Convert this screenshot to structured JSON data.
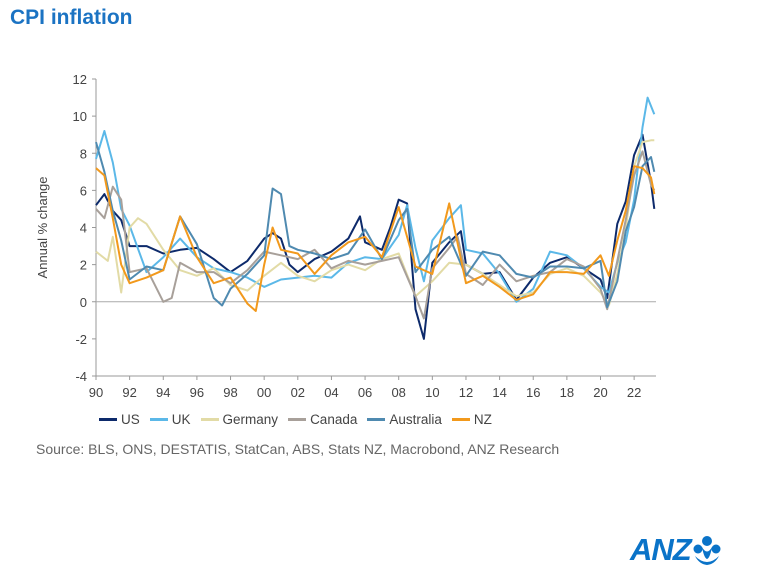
{
  "title": "CPI inflation",
  "source": "Source: BLS, ONS, DESTATIS, StatCan, ABS, Stats NZ, Macrobond, ANZ Research",
  "logo_text": "ANZ",
  "chart_data": {
    "type": "line",
    "title": "CPI inflation",
    "xlabel": "",
    "ylabel": "Annual % change",
    "xlim": [
      1990,
      2023.3
    ],
    "ylim": [
      -4,
      12
    ],
    "yticks": [
      -4,
      -2,
      0,
      2,
      4,
      6,
      8,
      10,
      12
    ],
    "xtick_labels": [
      "90",
      "92",
      "94",
      "96",
      "98",
      "00",
      "02",
      "04",
      "06",
      "08",
      "10",
      "12",
      "14",
      "16",
      "18",
      "20",
      "22"
    ],
    "grid": false,
    "legend_position": "bottom",
    "series": [
      {
        "name": "US",
        "color": "#0d2a6b",
        "x": [
          1990,
          1990.5,
          1991,
          1991.5,
          1992,
          1993,
          1994,
          1995,
          1996,
          1997,
          1998,
          1999,
          2000,
          2000.5,
          2001,
          2001.5,
          2002,
          2003,
          2004,
          2005,
          2005.7,
          2006,
          2007,
          2007.5,
          2008,
          2008.5,
          2009,
          2009.5,
          2010,
          2011,
          2011.7,
          2012,
          2013,
          2014,
          2015,
          2016,
          2017,
          2018,
          2019,
          2020,
          2020.4,
          2021,
          2021.5,
          2022,
          2022.5,
          2023,
          2023.2
        ],
        "y": [
          5.2,
          5.8,
          4.9,
          4.4,
          3.0,
          3.0,
          2.6,
          2.8,
          2.9,
          2.3,
          1.6,
          2.2,
          3.4,
          3.7,
          3.4,
          2.0,
          1.6,
          2.3,
          2.7,
          3.4,
          4.6,
          3.2,
          2.8,
          4.0,
          5.5,
          5.3,
          -0.4,
          -2.0,
          2.1,
          3.2,
          3.8,
          2.0,
          1.5,
          1.6,
          0.1,
          1.3,
          2.1,
          2.4,
          1.8,
          1.2,
          0.2,
          4.2,
          5.4,
          7.9,
          9.0,
          6.4,
          5.0
        ]
      },
      {
        "name": "UK",
        "color": "#5bb8e8",
        "x": [
          1990,
          1990.5,
          1991,
          1991.5,
          1992,
          1993,
          1994,
          1995,
          1996,
          1997,
          1998,
          1999,
          2000,
          2001,
          2002,
          2003,
          2004,
          2005,
          2006,
          2007,
          2008,
          2008.5,
          2009,
          2009.5,
          2010,
          2011,
          2011.7,
          2012,
          2013,
          2014,
          2015,
          2016,
          2017,
          2018,
          2019,
          2020,
          2020.5,
          2021,
          2021.5,
          2022,
          2022.5,
          2022.8,
          2023.2
        ],
        "y": [
          7.7,
          9.2,
          7.5,
          5.0,
          4.1,
          1.6,
          2.4,
          3.4,
          2.4,
          1.8,
          1.6,
          1.3,
          0.8,
          1.2,
          1.3,
          1.4,
          1.3,
          2.1,
          2.4,
          2.3,
          3.6,
          5.2,
          2.9,
          1.1,
          3.3,
          4.5,
          5.2,
          2.8,
          2.6,
          1.5,
          0.0,
          0.7,
          2.7,
          2.5,
          1.8,
          0.8,
          0.5,
          2.1,
          3.2,
          5.5,
          9.4,
          11.0,
          10.1
        ]
      },
      {
        "name": "Germany",
        "color": "#e2dba6",
        "x": [
          1990,
          1990.7,
          1991,
          1991.5,
          1992,
          1992.5,
          1993,
          1994,
          1995,
          1996,
          1997,
          1998,
          1999,
          2000,
          2001,
          2002,
          2003,
          2004,
          2005,
          2006,
          2007,
          2008,
          2009,
          2010,
          2011,
          2012,
          2013,
          2014,
          2015,
          2016,
          2017,
          2018,
          2019,
          2020,
          2020.5,
          2021,
          2021.5,
          2022,
          2022.5,
          2023,
          2023.2
        ],
        "y": [
          2.7,
          2.2,
          3.5,
          0.5,
          4.0,
          4.5,
          4.2,
          2.8,
          1.7,
          1.4,
          1.8,
          0.9,
          0.6,
          1.4,
          2.1,
          1.4,
          1.1,
          1.7,
          2.0,
          1.7,
          2.3,
          2.6,
          0.3,
          1.1,
          2.1,
          2.0,
          1.5,
          0.9,
          0.3,
          0.5,
          1.5,
          1.8,
          1.4,
          0.5,
          -0.2,
          1.5,
          3.9,
          7.3,
          8.6,
          8.7,
          8.7
        ]
      },
      {
        "name": "Canada",
        "color": "#a8a09a",
        "x": [
          1990,
          1990.5,
          1991,
          1991.5,
          1992,
          1993,
          1994,
          1994.5,
          1995,
          1996,
          1997,
          1998,
          1999,
          2000,
          2001,
          2002,
          2003,
          2004,
          2005,
          2006,
          2007,
          2008,
          2009,
          2009.5,
          2010,
          2011,
          2011.5,
          2012,
          2013,
          2014,
          2015,
          2016,
          2017,
          2018,
          2019,
          2020,
          2020.4,
          2021,
          2021.5,
          2022,
          2022.5,
          2023,
          2023.2
        ],
        "y": [
          5.0,
          4.5,
          6.2,
          5.5,
          1.6,
          1.8,
          0.0,
          0.2,
          2.1,
          1.6,
          1.6,
          1.0,
          1.7,
          2.7,
          2.5,
          2.3,
          2.8,
          1.8,
          2.2,
          2.0,
          2.2,
          2.4,
          0.3,
          -0.9,
          1.8,
          2.9,
          3.5,
          1.5,
          0.9,
          2.0,
          1.1,
          1.4,
          1.6,
          2.3,
          1.9,
          0.7,
          -0.4,
          2.2,
          4.4,
          6.8,
          8.1,
          6.3,
          6.0
        ]
      },
      {
        "name": "Australia",
        "color": "#4f8ab0",
        "x": [
          1990,
          1990.5,
          1991,
          1991.5,
          1992,
          1993,
          1994,
          1995,
          1996,
          1997,
          1997.5,
          1998,
          1999,
          2000,
          2000.5,
          2001,
          2001.5,
          2002,
          2003,
          2004,
          2005,
          2006,
          2007,
          2008,
          2008.5,
          2009,
          2010,
          2011,
          2012,
          2013,
          2014,
          2015,
          2016,
          2017,
          2018,
          2019,
          2020,
          2020.4,
          2021,
          2021.5,
          2022,
          2022.5,
          2023,
          2023.2
        ],
        "y": [
          8.6,
          7.0,
          4.9,
          3.3,
          1.2,
          1.9,
          1.7,
          4.6,
          3.1,
          0.2,
          -0.2,
          0.7,
          1.5,
          2.5,
          6.1,
          5.8,
          3.0,
          2.8,
          2.6,
          2.3,
          2.6,
          3.9,
          2.3,
          4.4,
          5.0,
          1.6,
          2.8,
          3.5,
          1.4,
          2.7,
          2.5,
          1.5,
          1.3,
          1.9,
          1.9,
          1.8,
          2.2,
          -0.3,
          1.1,
          3.8,
          5.1,
          7.3,
          7.8,
          7.0
        ]
      },
      {
        "name": "NZ",
        "color": "#f2991c",
        "x": [
          1990,
          1990.5,
          1991,
          1991.5,
          1992,
          1993,
          1994,
          1995,
          1996,
          1997,
          1998,
          1999,
          1999.5,
          2000,
          2000.5,
          2001,
          2002,
          2003,
          2004,
          2005,
          2006,
          2007,
          2008,
          2009,
          2010,
          2011,
          2012,
          2013,
          2014,
          2015,
          2016,
          2017,
          2018,
          2019,
          2020,
          2020.5,
          2021,
          2021.5,
          2022,
          2022.5,
          2023,
          2023.2
        ],
        "y": [
          7.2,
          6.8,
          4.5,
          2.0,
          1.0,
          1.3,
          1.7,
          4.6,
          2.4,
          1.0,
          1.3,
          -0.1,
          -0.5,
          2.0,
          4.0,
          2.8,
          2.6,
          1.5,
          2.5,
          3.2,
          3.5,
          2.4,
          5.1,
          1.9,
          1.5,
          5.3,
          1.0,
          1.4,
          0.8,
          0.1,
          0.4,
          1.6,
          1.6,
          1.5,
          2.5,
          1.4,
          3.3,
          4.9,
          7.3,
          7.2,
          6.7,
          5.8
        ]
      }
    ]
  }
}
